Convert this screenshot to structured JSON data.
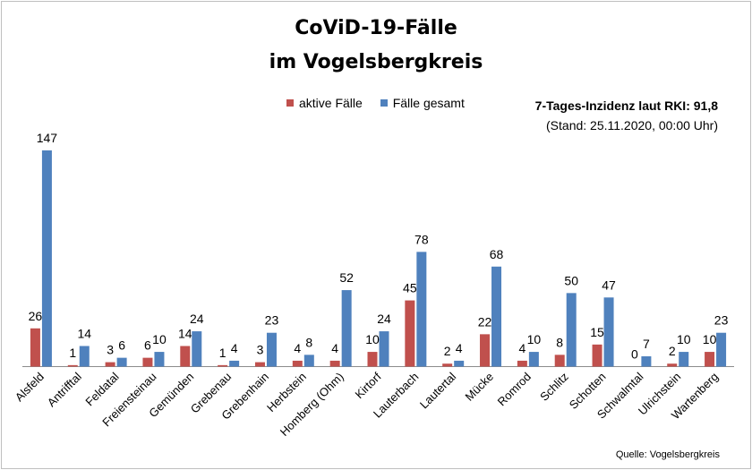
{
  "chart_data": {
    "type": "bar",
    "title": "CoViD-19-Fälle",
    "subtitle": "im Vogelsbergkreis",
    "categories": [
      "Alsfeld",
      "Antrifftal",
      "Feldatal",
      "Freiensteinau",
      "Gemünden",
      "Grebenau",
      "Grebenhain",
      "Herbstein",
      "Homberg (Ohm)",
      "Kirtorf",
      "Lauterbach",
      "Lautertal",
      "Mücke",
      "Romrod",
      "Schlitz",
      "Schotten",
      "Schwalmtal",
      "Ulrichstein",
      "Wartenberg"
    ],
    "series": [
      {
        "name": "aktive Fälle",
        "color": "#c0504d",
        "values": [
          26,
          1,
          3,
          6,
          14,
          1,
          3,
          4,
          4,
          10,
          45,
          2,
          22,
          4,
          8,
          15,
          0,
          2,
          10
        ]
      },
      {
        "name": "Fälle gesamt",
        "color": "#4f81bd",
        "values": [
          147,
          14,
          6,
          10,
          24,
          4,
          23,
          8,
          52,
          24,
          78,
          4,
          68,
          10,
          50,
          47,
          7,
          10,
          23
        ]
      }
    ],
    "ylim": [
      0,
      150
    ],
    "xlabel": "",
    "ylabel": "",
    "grid": false,
    "legend_position": "top-center"
  },
  "legend": {
    "active_label": "aktive Fälle",
    "total_label": "Fälle gesamt"
  },
  "incidence": {
    "main": "7-Tages-Inzidenz laut RKI: 91,8",
    "stand": "(Stand: 25.11.2020, 00:00 Uhr)"
  },
  "source": "Quelle: Vogelsbergkreis"
}
